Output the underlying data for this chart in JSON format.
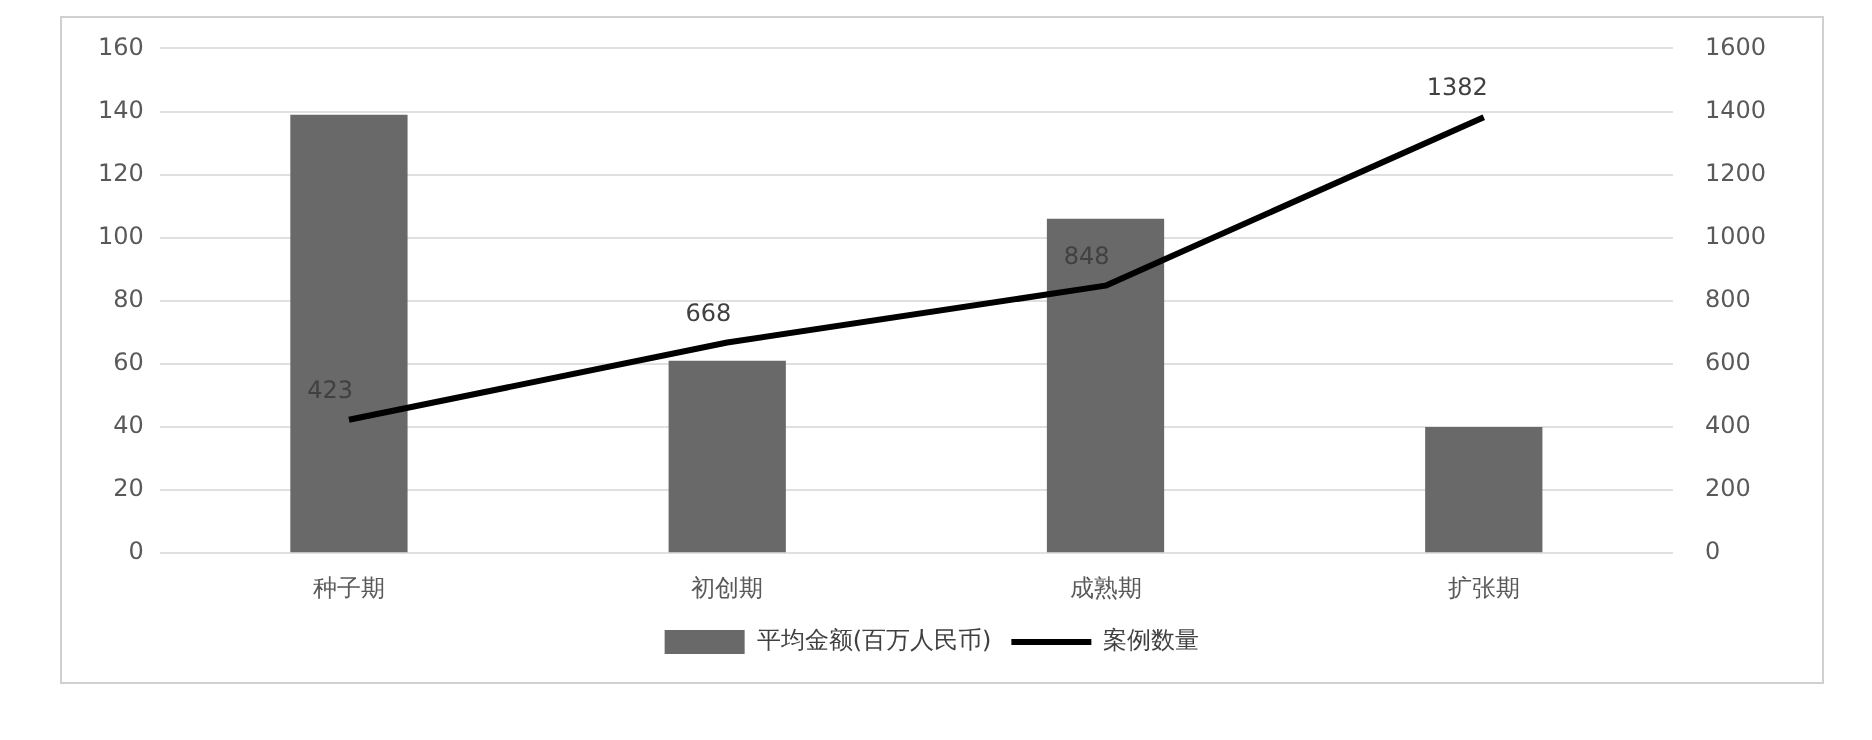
{
  "chart_data": {
    "type": "bar",
    "categories": [
      "种子期",
      "初创期",
      "成熟期",
      "扩张期"
    ],
    "series": [
      {
        "name": "平均金额(百万人民币)",
        "color": "#696969",
        "values": [
          139,
          61,
          106,
          40
        ]
      },
      {
        "name": "案例数量",
        "type": "line",
        "axis": "y2",
        "color": "#000000",
        "values": [
          423,
          668,
          848,
          1382
        ],
        "value_labels": [
          "423",
          "668",
          "848",
          "1382"
        ]
      }
    ],
    "ylim": [
      0,
      160
    ],
    "yticks": [
      0,
      20,
      40,
      60,
      80,
      100,
      120,
      140,
      160
    ],
    "y2lim": [
      0,
      1600
    ],
    "y2ticks": [
      0,
      200,
      400,
      600,
      800,
      1000,
      1200,
      1400,
      1600
    ],
    "grid": "y",
    "legend": "bottom",
    "marker": "none",
    "line_style": "solid"
  }
}
